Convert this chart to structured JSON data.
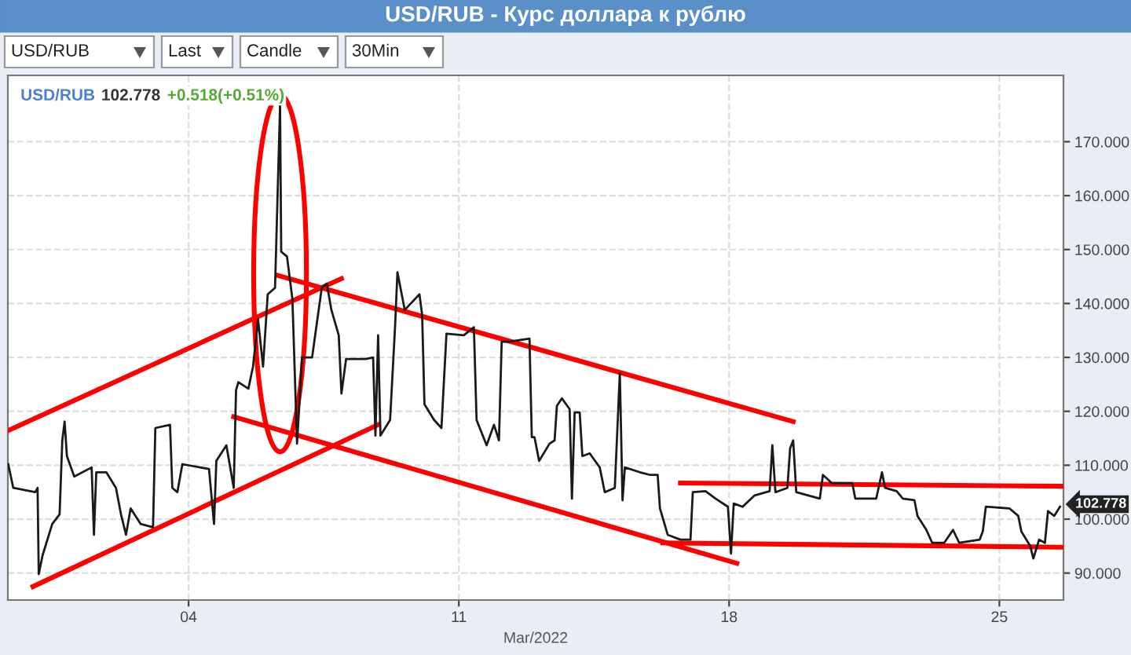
{
  "chart_data": {
    "type": "line",
    "title": "USD/RUB - Курс доллара к рублю",
    "xlabel": "Mar/2022",
    "xlim": [
      -0.68,
      26.66
    ],
    "xticks": [
      {
        "value": 4,
        "label": "04"
      },
      {
        "value": 11,
        "label": "11"
      },
      {
        "value": 18,
        "label": "18"
      },
      {
        "value": 25,
        "label": "25"
      }
    ],
    "ylim": [
      85,
      182.3
    ],
    "yticks": [
      {
        "value": 90,
        "label": "90.000"
      },
      {
        "value": 100,
        "label": "100.000"
      },
      {
        "value": 110,
        "label": "110.000"
      },
      {
        "value": 120,
        "label": "120.000"
      },
      {
        "value": 130,
        "label": "130.000"
      },
      {
        "value": 140,
        "label": "140.000"
      },
      {
        "value": 150,
        "label": "150.000"
      },
      {
        "value": 160,
        "label": "160.000"
      },
      {
        "value": 170,
        "label": "170.000"
      }
    ],
    "grid": true,
    "legend": false,
    "marker": "none",
    "line_style": "solid",
    "series": [
      {
        "color": "#1a1a1a",
        "x": [
          -0.67,
          -0.54,
          0.03,
          0.09,
          0.12,
          0.22,
          0.47,
          0.66,
          0.73,
          0.79,
          0.85,
          1.04,
          1.49,
          1.55,
          1.61,
          1.87,
          2.12,
          2.25,
          2.38,
          2.5,
          2.76,
          3.08,
          3.14,
          3.52,
          3.58,
          3.71,
          3.84,
          4.53,
          4.66,
          4.72,
          4.98,
          5.1,
          5.17,
          5.23,
          5.29,
          5.55,
          5.67,
          5.8,
          5.93,
          6.05,
          6.24,
          6.37,
          6.4,
          6.55,
          6.69,
          6.81,
          6.94,
          7.2,
          7.45,
          7.58,
          7.7,
          7.89,
          7.96,
          8.08,
          8.59,
          8.78,
          8.84,
          8.91,
          8.97,
          9.22,
          9.35,
          9.41,
          9.6,
          9.98,
          10.05,
          10.11,
          10.36,
          10.55,
          10.68,
          11.13,
          11.39,
          11.46,
          11.72,
          11.91,
          12.04,
          12.11,
          12.3,
          12.83,
          12.89,
          12.96,
          13.08,
          13.35,
          13.48,
          13.54,
          13.67,
          13.87,
          13.93,
          14.0,
          14.13,
          14.2,
          14.39,
          14.65,
          14.78,
          15.04,
          15.17,
          15.24,
          15.3,
          15.69,
          15.96,
          16.15,
          16.21,
          16.41,
          16.74,
          17.0,
          17.06,
          17.39,
          17.65,
          17.97,
          18.05,
          18.12,
          18.35,
          18.66,
          19.05,
          19.12,
          19.2,
          19.51,
          19.58,
          19.66,
          19.74,
          20.35,
          20.43,
          20.66,
          21.19,
          21.27,
          21.81,
          21.96,
          22.04,
          22.34,
          22.5,
          22.8,
          22.88,
          23.11,
          23.26,
          23.57,
          23.8,
          23.96,
          24.49,
          24.57,
          24.65,
          25.26,
          25.49,
          25.57,
          25.8,
          25.88,
          26.03,
          26.18,
          26.26,
          26.42,
          26.57
        ],
        "values": [
          110.2,
          105.8,
          105,
          105.8,
          89.8,
          93.3,
          99.1,
          100.9,
          114.6,
          118.1,
          111.7,
          107.9,
          109.6,
          97.1,
          108.7,
          108.7,
          105.8,
          100.9,
          97.1,
          102,
          99.1,
          98.5,
          116.9,
          117.5,
          105.8,
          105,
          110.2,
          109.3,
          99.1,
          110.8,
          113.7,
          108.7,
          105.8,
          123.9,
          125.4,
          124.2,
          128.3,
          137,
          128.3,
          141.7,
          142.9,
          176.7,
          149.6,
          148.7,
          140.8,
          114,
          130,
          130,
          142.9,
          143.7,
          138.8,
          134.1,
          123.3,
          129.7,
          129.7,
          130,
          115.5,
          134.1,
          115.5,
          118.4,
          135.9,
          145.8,
          138.8,
          141.7,
          137.9,
          121.3,
          118.4,
          116.9,
          134.4,
          134.1,
          135.6,
          118.4,
          113.7,
          117.5,
          114.6,
          132.9,
          132.9,
          133.5,
          115.2,
          115.2,
          110.8,
          114,
          114.6,
          121,
          122.4,
          120.4,
          103.8,
          119.8,
          119.8,
          111.7,
          112.2,
          109.6,
          105,
          105.8,
          127.1,
          103.5,
          109.6,
          108.7,
          108.2,
          108.2,
          102,
          97.1,
          96.2,
          96.2,
          105,
          105.2,
          103.8,
          102.3,
          93.6,
          102.9,
          102.3,
          104.4,
          105.2,
          113.7,
          105,
          105.8,
          113.1,
          114.6,
          105,
          103.8,
          108.2,
          106.7,
          106.7,
          103.8,
          103.8,
          108.7,
          105.8,
          105.2,
          103.8,
          103.5,
          100.6,
          98,
          95.6,
          95.6,
          98,
          95.6,
          96.2,
          97.7,
          102.3,
          102,
          100.6,
          97.7,
          95,
          92.7,
          96.2,
          95.6,
          101.5,
          100.6,
          102.3
        ]
      },
      {
        "color": "#ff0000",
        "x": [
          -0.68,
          7.96
        ],
        "values": [
          116.4,
          144.6
        ]
      },
      {
        "color": "#ff0000",
        "x": [
          -0.03,
          8.91
        ],
        "values": [
          87.5,
          117.5
        ]
      },
      {
        "color": "#ff0000",
        "x": [
          6.31,
          19.66
        ],
        "values": [
          145.2,
          118.1
        ]
      },
      {
        "color": "#ff0000",
        "x": [
          5.17,
          18.2
        ],
        "values": [
          119,
          91.8
        ]
      },
      {
        "color": "#ff0000",
        "x": [
          16.74,
          26.65
        ],
        "values": [
          106.7,
          106.1
        ]
      },
      {
        "color": "#ff0000",
        "x": [
          16.28,
          26.65
        ],
        "values": [
          95.6,
          94.8
        ]
      }
    ],
    "annotations": [
      "USD/RUB",
      "Last",
      "Candle",
      "30Min",
      "USD/RUB",
      "102.778",
      "+0.518(+0.51%)",
      {
        "text": "102.778",
        "x": 26.57,
        "y": 102.778
      }
    ]
  }
}
